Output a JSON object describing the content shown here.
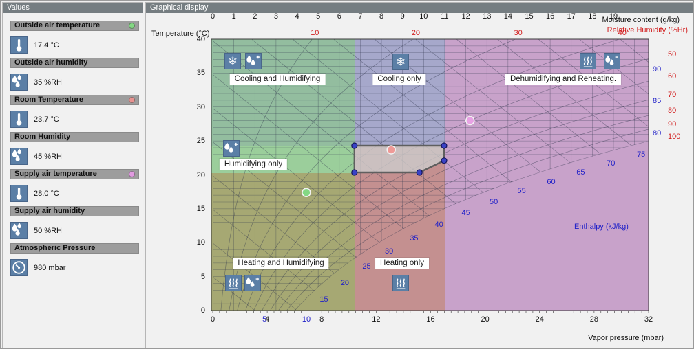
{
  "app": {
    "left_panel_title": "Values",
    "right_panel_title": "Graphical display"
  },
  "sidebar": {
    "items": [
      {
        "label": "Outside air temperature",
        "value": "17.4 °C",
        "icon": "thermometer-icon",
        "dot_color": "#84d884"
      },
      {
        "label": "Outside air humidity",
        "value": "35 %RH",
        "icon": "humidity-icon",
        "dot_color": null
      },
      {
        "label": "Room Temperature",
        "value": "23.7 °C",
        "icon": "thermometer-icon",
        "dot_color": "#e89391"
      },
      {
        "label": "Room Humidity",
        "value": "45 %RH",
        "icon": "humidity-icon",
        "dot_color": null
      },
      {
        "label": "Supply air temperature",
        "value": "28.0 °C",
        "icon": "thermometer-icon",
        "dot_color": "#e19ae0"
      },
      {
        "label": "Supply air humidity",
        "value": "50 %RH",
        "icon": "humidity-icon",
        "dot_color": null
      },
      {
        "label": "Atmospheric Pressure",
        "value": "980 mbar",
        "icon": "gauge-icon",
        "dot_color": null
      }
    ]
  },
  "chart_data": {
    "type": "psychrometric",
    "pressure_mbar": 980,
    "axes": {
      "top": {
        "label": "Moisture content (g/kg)",
        "ticks": [
          0,
          1,
          2,
          3,
          4,
          5,
          6,
          7,
          8,
          9,
          10,
          11,
          12,
          13,
          14,
          15,
          16,
          17,
          18,
          19
        ],
        "range": [
          0,
          20.66
        ]
      },
      "left": {
        "label": "Temperature (°C)",
        "ticks": [
          40,
          35,
          30,
          25,
          20,
          15,
          10,
          5,
          0
        ],
        "range": [
          0,
          40
        ]
      },
      "bottom": {
        "label": "Vapor pressure (mbar)",
        "ticks": [
          0,
          4,
          8,
          12,
          16,
          20,
          24,
          28,
          32
        ],
        "range": [
          0,
          32
        ]
      },
      "relative_humidity": {
        "label": "Relative Humidity (%Hr)",
        "color": "#d21f1f",
        "top_ticks": [
          10,
          20,
          30,
          40
        ],
        "right_ticks": [
          50,
          60,
          70,
          80,
          90,
          100
        ]
      },
      "enthalpy": {
        "label": "Enthalpy (kJ/kg)",
        "color": "#2121c8",
        "labels": [
          10,
          15,
          20,
          25,
          30,
          35,
          40,
          45,
          50,
          55,
          60,
          65,
          70,
          75,
          80,
          85,
          90
        ]
      }
    },
    "regions": [
      {
        "id": "cooling-humidifying",
        "label": "Cooling and Humidifying",
        "icons": [
          "snowflake-icon",
          "droplet-plus-icon"
        ],
        "color": "#93bd9f"
      },
      {
        "id": "cooling-only",
        "label": "Cooling only",
        "icons": [
          "snowflake-icon"
        ],
        "color": "#a6a8cb"
      },
      {
        "id": "dehumidifying-reheating",
        "label": "Dehumidifying and Reheating.",
        "icons": [
          "heat-icon",
          "droplet-minus-icon"
        ],
        "color": "#c8a2ca"
      },
      {
        "id": "humidifying-only",
        "label": "Humidifying only",
        "icons": [
          "droplet-plus-icon"
        ],
        "color": "#9bce9b"
      },
      {
        "id": "heating-humidifying",
        "label": "Heating and Humidifying",
        "icons": [
          "heat-icon",
          "droplet-plus-icon"
        ],
        "color": "#a6a873"
      },
      {
        "id": "heating-only",
        "label": "Heating only",
        "icons": [
          "heat-icon"
        ],
        "color": "#c49090"
      }
    ],
    "points": [
      {
        "name": "outside-air-point",
        "t": 17.4,
        "rh": 35,
        "color": "#84d884"
      },
      {
        "name": "room-point",
        "t": 23.7,
        "rh": 45,
        "color": "#ef9a97"
      },
      {
        "name": "supply-air-point",
        "t": 28.0,
        "rh": 50,
        "color": "#e8a2e4"
      }
    ],
    "comfort_zone": {
      "polygon_t_w": [
        [
          24.3,
          6.72
        ],
        [
          24.3,
          10.97
        ],
        [
          22.1,
          10.97
        ],
        [
          20.35,
          9.8
        ],
        [
          20.35,
          6.72
        ]
      ],
      "handle_color": "#3a42c6"
    }
  }
}
